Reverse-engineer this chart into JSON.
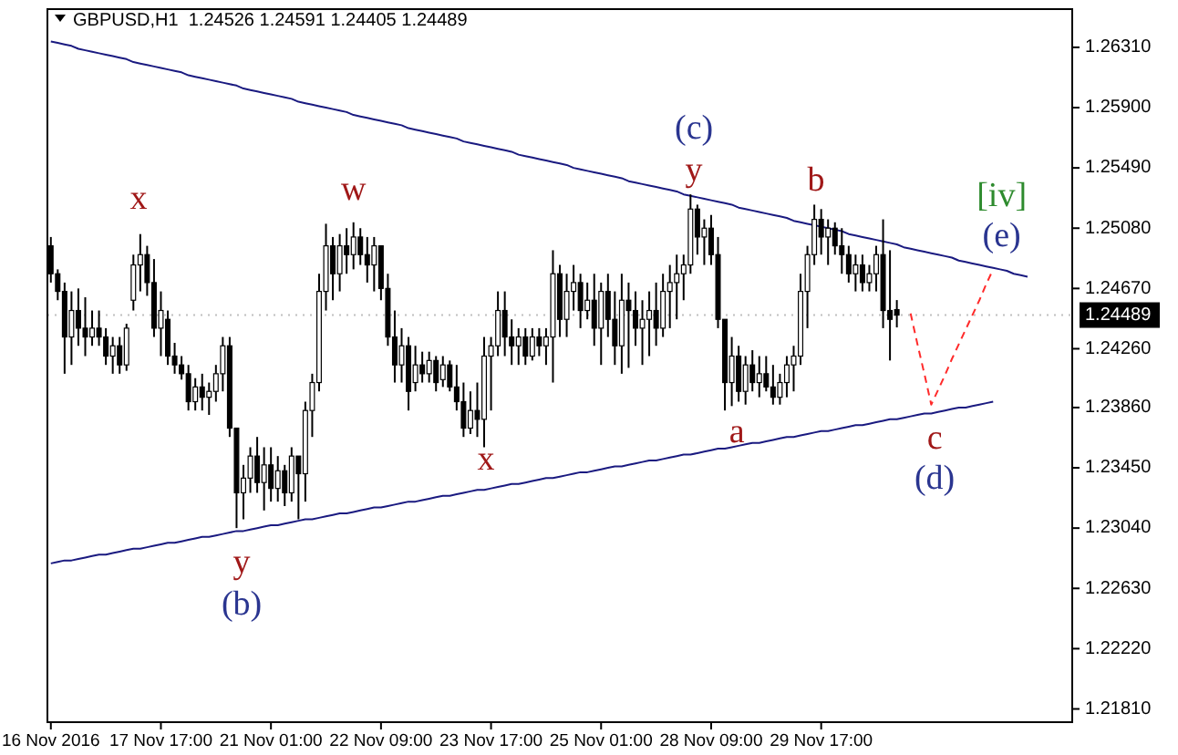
{
  "chart_data": {
    "type": "candlestick",
    "title": "GBPUSD,H1  1.24526 1.24591 1.24405 1.24489",
    "color": "#000000",
    "categories": [
      "16 Nov 2016",
      null,
      null,
      null,
      null,
      null,
      null,
      null,
      null,
      null,
      null,
      null,
      null,
      null,
      null,
      null,
      "17 Nov 17:00",
      null,
      null,
      null,
      null,
      null,
      null,
      null,
      null,
      null,
      null,
      null,
      null,
      null,
      null,
      null,
      "21 Nov 01:00",
      null,
      null,
      null,
      null,
      null,
      null,
      null,
      null,
      null,
      null,
      null,
      null,
      null,
      null,
      null,
      "22 Nov 09:00",
      null,
      null,
      null,
      null,
      null,
      null,
      null,
      null,
      null,
      null,
      null,
      null,
      null,
      null,
      null,
      "23 Nov 17:00",
      null,
      null,
      null,
      null,
      null,
      null,
      null,
      null,
      null,
      null,
      null,
      null,
      null,
      null,
      null,
      "25 Nov 01:00",
      null,
      null,
      null,
      null,
      null,
      null,
      null,
      null,
      null,
      null,
      null,
      null,
      null,
      null,
      null,
      "28 Nov 09:00",
      null,
      null,
      null,
      null,
      null,
      null,
      null,
      null,
      null,
      null,
      null,
      null,
      null,
      null,
      null,
      "29 Nov 17:00",
      null,
      null,
      null,
      null,
      null,
      null,
      null,
      null,
      null,
      null,
      null,
      null,
      null,
      null,
      null,
      null,
      null,
      null,
      null,
      null,
      null,
      null,
      null,
      null,
      null,
      null,
      null,
      null,
      null,
      null,
      null,
      null,
      null,
      null,
      null,
      null
    ],
    "ohlc": [
      [
        1.2496,
        1.2502,
        1.2471,
        1.2477
      ],
      [
        1.2477,
        1.248,
        1.2459,
        1.2465
      ],
      [
        1.2465,
        1.2471,
        1.2409,
        1.2434
      ],
      [
        1.2434,
        1.2465,
        1.2415,
        1.2452
      ],
      [
        1.2452,
        1.2467,
        1.2428,
        1.244
      ],
      [
        1.244,
        1.2461,
        1.2421,
        1.2434
      ],
      [
        1.2434,
        1.2452,
        1.2428,
        1.244
      ],
      [
        1.244,
        1.2452,
        1.2428,
        1.2434
      ],
      [
        1.2434,
        1.244,
        1.2415,
        1.2421
      ],
      [
        1.2421,
        1.2434,
        1.2409,
        1.2428
      ],
      [
        1.2428,
        1.2434,
        1.2409,
        1.2415
      ],
      [
        1.2415,
        1.2443,
        1.2411,
        1.244
      ],
      [
        1.2459,
        1.249,
        1.2452,
        1.2483
      ],
      [
        1.2483,
        1.2504,
        1.2465,
        1.249
      ],
      [
        1.249,
        1.2496,
        1.2462,
        1.2471
      ],
      [
        1.2471,
        1.2487,
        1.2434,
        1.244
      ],
      [
        1.244,
        1.2465,
        1.2421,
        1.2452
      ],
      [
        1.2446,
        1.2452,
        1.2415,
        1.2421
      ],
      [
        1.2421,
        1.243,
        1.2409,
        1.2415
      ],
      [
        1.2415,
        1.2421,
        1.2405,
        1.2409
      ],
      [
        1.2409,
        1.2415,
        1.2384,
        1.239
      ],
      [
        1.239,
        1.2406,
        1.2384,
        1.24
      ],
      [
        1.24,
        1.2409,
        1.2384,
        1.2393
      ],
      [
        1.2393,
        1.2403,
        1.2381,
        1.2397
      ],
      [
        1.2397,
        1.2415,
        1.239,
        1.2409
      ],
      [
        1.2409,
        1.2434,
        1.2397,
        1.2428
      ],
      [
        1.2428,
        1.2434,
        1.2366,
        1.2372
      ],
      [
        1.2372,
        1.2372,
        1.2304,
        1.2328
      ],
      [
        1.2328,
        1.2347,
        1.231,
        1.2338
      ],
      [
        1.2338,
        1.2359,
        1.2328,
        1.2353
      ],
      [
        1.2353,
        1.2366,
        1.2328,
        1.2335
      ],
      [
        1.2335,
        1.2359,
        1.2316,
        1.2347
      ],
      [
        1.2347,
        1.2359,
        1.2322,
        1.2331
      ],
      [
        1.2331,
        1.2353,
        1.2322,
        1.2343
      ],
      [
        1.2343,
        1.2347,
        1.2319,
        1.2328
      ],
      [
        1.2328,
        1.2359,
        1.2322,
        1.2353
      ],
      [
        1.2353,
        1.2353,
        1.231,
        1.2341
      ],
      [
        1.2341,
        1.239,
        1.2322,
        1.2384
      ],
      [
        1.2384,
        1.2409,
        1.2366,
        1.2403
      ],
      [
        1.2403,
        1.2477,
        1.2397,
        1.2465
      ],
      [
        1.2465,
        1.2511,
        1.2452,
        1.2496
      ],
      [
        1.2496,
        1.2502,
        1.2459,
        1.2477
      ],
      [
        1.2477,
        1.2504,
        1.2465,
        1.2496
      ],
      [
        1.2496,
        1.2508,
        1.2477,
        1.249
      ],
      [
        1.249,
        1.2512,
        1.248,
        1.2502
      ],
      [
        1.2502,
        1.2508,
        1.2483,
        1.249
      ],
      [
        1.249,
        1.2502,
        1.2471,
        1.2483
      ],
      [
        1.2483,
        1.2502,
        1.2465,
        1.2496
      ],
      [
        1.2496,
        1.2496,
        1.2459,
        1.2467
      ],
      [
        1.2467,
        1.2477,
        1.2428,
        1.2434
      ],
      [
        1.2434,
        1.2452,
        1.2403,
        1.2415
      ],
      [
        1.2415,
        1.244,
        1.2403,
        1.2428
      ],
      [
        1.2428,
        1.2434,
        1.2384,
        1.2397
      ],
      [
        1.2403,
        1.2428,
        1.2397,
        1.2415
      ],
      [
        1.2415,
        1.2424,
        1.2403,
        1.2409
      ],
      [
        1.2409,
        1.2424,
        1.2403,
        1.2418
      ],
      [
        1.2418,
        1.2421,
        1.2397,
        1.2403
      ],
      [
        1.2405,
        1.2421,
        1.24,
        1.2415
      ],
      [
        1.2415,
        1.2418,
        1.2397,
        1.24
      ],
      [
        1.24,
        1.2415,
        1.2384,
        1.239
      ],
      [
        1.239,
        1.2403,
        1.2366,
        1.2372
      ],
      [
        1.2372,
        1.2397,
        1.2368,
        1.2384
      ],
      [
        1.2384,
        1.2403,
        1.2366,
        1.2378
      ],
      [
        1.2378,
        1.2434,
        1.2359,
        1.2421
      ],
      [
        1.2421,
        1.2434,
        1.2384,
        1.2428
      ],
      [
        1.2428,
        1.2465,
        1.2421,
        1.2452
      ],
      [
        1.2452,
        1.2465,
        1.2421,
        1.2434
      ],
      [
        1.2434,
        1.2446,
        1.2415,
        1.2428
      ],
      [
        1.2428,
        1.244,
        1.2415,
        1.2434
      ],
      [
        1.2434,
        1.244,
        1.2415,
        1.2421
      ],
      [
        1.2421,
        1.244,
        1.2418,
        1.2434
      ],
      [
        1.2434,
        1.244,
        1.2421,
        1.2428
      ],
      [
        1.2428,
        1.244,
        1.2415,
        1.2434
      ],
      [
        1.2434,
        1.2493,
        1.2403,
        1.2477
      ],
      [
        1.2477,
        1.2483,
        1.2434,
        1.2446
      ],
      [
        1.2446,
        1.2477,
        1.2434,
        1.2465
      ],
      [
        1.2465,
        1.2483,
        1.2452,
        1.2471
      ],
      [
        1.2471,
        1.2477,
        1.244,
        1.2452
      ],
      [
        1.2452,
        1.2471,
        1.2446,
        1.2459
      ],
      [
        1.2459,
        1.2477,
        1.2428,
        1.244
      ],
      [
        1.244,
        1.2471,
        1.2415,
        1.2465
      ],
      [
        1.2465,
        1.2477,
        1.2434,
        1.2446
      ],
      [
        1.2446,
        1.2465,
        1.2415,
        1.2428
      ],
      [
        1.2428,
        1.2477,
        1.2409,
        1.2459
      ],
      [
        1.2459,
        1.2471,
        1.2413,
        1.2452
      ],
      [
        1.2452,
        1.2465,
        1.2428,
        1.244
      ],
      [
        1.244,
        1.2459,
        1.2415,
        1.2446
      ],
      [
        1.2446,
        1.2465,
        1.2421,
        1.2452
      ],
      [
        1.2452,
        1.2471,
        1.2428,
        1.244
      ],
      [
        1.244,
        1.2477,
        1.2434,
        1.2465
      ],
      [
        1.2465,
        1.2483,
        1.244,
        1.2471
      ],
      [
        1.2471,
        1.249,
        1.2446,
        1.2477
      ],
      [
        1.2477,
        1.249,
        1.2459,
        1.2483
      ],
      [
        1.2483,
        1.2531,
        1.2477,
        1.2521
      ],
      [
        1.2521,
        1.2524,
        1.249,
        1.2502
      ],
      [
        1.2502,
        1.2514,
        1.2483,
        1.2508
      ],
      [
        1.2508,
        1.2517,
        1.2483,
        1.249
      ],
      [
        1.249,
        1.2502,
        1.244,
        1.2446
      ],
      [
        1.2446,
        1.2446,
        1.2384,
        1.2403
      ],
      [
        1.2403,
        1.2434,
        1.2387,
        1.2421
      ],
      [
        1.2421,
        1.2428,
        1.239,
        1.2397
      ],
      [
        1.2397,
        1.2421,
        1.2388,
        1.2415
      ],
      [
        1.2415,
        1.2425,
        1.2397,
        1.2403
      ],
      [
        1.2403,
        1.2421,
        1.2393,
        1.2409
      ],
      [
        1.2409,
        1.2421,
        1.2397,
        1.24
      ],
      [
        1.24,
        1.2415,
        1.2388,
        1.2393
      ],
      [
        1.2393,
        1.2409,
        1.2388,
        1.2403
      ],
      [
        1.2403,
        1.2421,
        1.2393,
        1.2415
      ],
      [
        1.2415,
        1.2428,
        1.2397,
        1.2421
      ],
      [
        1.2421,
        1.2477,
        1.2415,
        1.2465
      ],
      [
        1.2465,
        1.2496,
        1.244,
        1.249
      ],
      [
        1.249,
        1.2524,
        1.2483,
        1.2514
      ],
      [
        1.2514,
        1.2521,
        1.249,
        1.2502
      ],
      [
        1.2502,
        1.2514,
        1.2483,
        1.2508
      ],
      [
        1.2508,
        1.2512,
        1.249,
        1.2496
      ],
      [
        1.2496,
        1.2508,
        1.2477,
        1.249
      ],
      [
        1.249,
        1.2496,
        1.2471,
        1.2477
      ],
      [
        1.2477,
        1.249,
        1.2465,
        1.2483
      ],
      [
        1.2483,
        1.249,
        1.2465,
        1.2471
      ],
      [
        1.2471,
        1.2483,
        1.2465,
        1.2477
      ],
      [
        1.2477,
        1.2496,
        1.2465,
        1.249
      ],
      [
        1.249,
        1.2514,
        1.244,
        1.2452
      ],
      [
        1.2452,
        1.2493,
        1.2418,
        1.2446
      ],
      [
        1.24526,
        1.24591,
        1.24405,
        1.24489
      ],
      null,
      null,
      null,
      null,
      null,
      null,
      null,
      null,
      null,
      null,
      null,
      null,
      null,
      null,
      null,
      null,
      null,
      null,
      null,
      null,
      null,
      null,
      null,
      null,
      null
    ],
    "series": [
      {
        "type": "line",
        "color": "#1a1a80",
        "line_style": "solid",
        "values": [
          1.2635,
          1.2634,
          1.2633,
          1.2632,
          1.263,
          1.2629,
          1.2628,
          1.2627,
          1.2626,
          1.2625,
          1.2624,
          1.2623,
          1.2621,
          1.262,
          1.2619,
          1.2618,
          1.2617,
          1.2616,
          1.2615,
          1.2614,
          1.2612,
          1.2611,
          1.261,
          1.2609,
          1.2608,
          1.2607,
          1.2606,
          1.2605,
          1.2603,
          1.2602,
          1.2601,
          1.26,
          1.2599,
          1.2598,
          1.2597,
          1.2596,
          1.2594,
          1.2593,
          1.2592,
          1.2591,
          1.259,
          1.2589,
          1.2588,
          1.2587,
          1.2585,
          1.2584,
          1.2583,
          1.2582,
          1.2581,
          1.258,
          1.2579,
          1.2578,
          1.2576,
          1.2575,
          1.2574,
          1.2573,
          1.2572,
          1.2571,
          1.257,
          1.2569,
          1.2567,
          1.2566,
          1.2565,
          1.2564,
          1.2563,
          1.2562,
          1.2561,
          1.256,
          1.2558,
          1.2557,
          1.2556,
          1.2555,
          1.2554,
          1.2553,
          1.2552,
          1.2551,
          1.2549,
          1.2548,
          1.2547,
          1.2546,
          1.2545,
          1.2544,
          1.2543,
          1.2542,
          1.254,
          1.2539,
          1.2538,
          1.2537,
          1.2536,
          1.2535,
          1.2534,
          1.2533,
          1.2531,
          1.253,
          1.2529,
          1.2528,
          1.2527,
          1.2526,
          1.2525,
          1.2524,
          1.2522,
          1.2521,
          1.252,
          1.2519,
          1.2518,
          1.2517,
          1.2516,
          1.2515,
          1.2513,
          1.2512,
          1.2511,
          1.251,
          1.2509,
          1.2508,
          1.2507,
          1.2506,
          1.2504,
          1.2503,
          1.2502,
          1.2501,
          1.25,
          1.2499,
          1.2498,
          1.2497,
          1.2495,
          1.2494,
          1.2493,
          1.2492,
          1.2491,
          1.249,
          1.2489,
          1.2488,
          1.2486,
          1.2485,
          1.2484,
          1.2483,
          1.2482,
          1.2481,
          1.248,
          1.2479,
          1.2477,
          1.2476,
          1.2475,
          null,
          null,
          null,
          null,
          null,
          null
        ]
      },
      {
        "type": "line",
        "color": "#1a1a80",
        "line_style": "solid",
        "values": [
          1.228,
          1.2281,
          1.2282,
          1.2282,
          1.2283,
          1.2284,
          1.2285,
          1.2286,
          1.2286,
          1.2287,
          1.2288,
          1.2289,
          1.229,
          1.229,
          1.2291,
          1.2292,
          1.2293,
          1.2294,
          1.2294,
          1.2295,
          1.2296,
          1.2297,
          1.2298,
          1.2298,
          1.2299,
          1.23,
          1.2301,
          1.2302,
          1.2302,
          1.2303,
          1.2304,
          1.2305,
          1.2306,
          1.2306,
          1.2307,
          1.2308,
          1.2309,
          1.231,
          1.231,
          1.2311,
          1.2312,
          1.2313,
          1.2314,
          1.2314,
          1.2315,
          1.2316,
          1.2317,
          1.2318,
          1.2318,
          1.2319,
          1.232,
          1.2321,
          1.2322,
          1.2322,
          1.2323,
          1.2324,
          1.2325,
          1.2326,
          1.2326,
          1.2327,
          1.2328,
          1.2329,
          1.233,
          1.233,
          1.2331,
          1.2332,
          1.2333,
          1.2334,
          1.2334,
          1.2335,
          1.2336,
          1.2337,
          1.2338,
          1.2338,
          1.2339,
          1.234,
          1.2341,
          1.2342,
          1.2342,
          1.2343,
          1.2344,
          1.2345,
          1.2346,
          1.2346,
          1.2347,
          1.2348,
          1.2349,
          1.235,
          1.235,
          1.2351,
          1.2352,
          1.2353,
          1.2354,
          1.2354,
          1.2355,
          1.2356,
          1.2357,
          1.2358,
          1.2358,
          1.2359,
          1.236,
          1.2361,
          1.2362,
          1.2362,
          1.2363,
          1.2364,
          1.2365,
          1.2366,
          1.2366,
          1.2367,
          1.2368,
          1.2369,
          1.237,
          1.237,
          1.2371,
          1.2372,
          1.2373,
          1.2374,
          1.2374,
          1.2375,
          1.2376,
          1.2377,
          1.2378,
          1.2378,
          1.2379,
          1.238,
          1.2381,
          1.2382,
          1.2382,
          1.2383,
          1.2384,
          1.2385,
          1.2386,
          1.2386,
          1.2387,
          1.2388,
          1.2389,
          1.239,
          null,
          null,
          null,
          null,
          null,
          null,
          null,
          null,
          null,
          null,
          null
        ]
      },
      {
        "type": "line",
        "color": "#ff2a2a",
        "line_style": "dashed",
        "values": [
          null,
          null,
          null,
          null,
          null,
          null,
          null,
          null,
          null,
          null,
          null,
          null,
          null,
          null,
          null,
          null,
          null,
          null,
          null,
          null,
          null,
          null,
          null,
          null,
          null,
          null,
          null,
          null,
          null,
          null,
          null,
          null,
          null,
          null,
          null,
          null,
          null,
          null,
          null,
          null,
          null,
          null,
          null,
          null,
          null,
          null,
          null,
          null,
          null,
          null,
          null,
          null,
          null,
          null,
          null,
          null,
          null,
          null,
          null,
          null,
          null,
          null,
          null,
          null,
          null,
          null,
          null,
          null,
          null,
          null,
          null,
          null,
          null,
          null,
          null,
          null,
          null,
          null,
          null,
          null,
          null,
          null,
          null,
          null,
          null,
          null,
          null,
          null,
          null,
          null,
          null,
          null,
          null,
          null,
          null,
          null,
          null,
          null,
          null,
          null,
          null,
          null,
          null,
          null,
          null,
          null,
          null,
          null,
          null,
          null,
          null,
          null,
          null,
          null,
          null,
          null,
          null,
          null,
          null,
          null,
          null,
          null,
          null,
          null,
          null,
          1.245,
          1.2429,
          1.2409,
          1.2388,
          1.2398,
          1.2408,
          1.2419,
          1.2429,
          1.2439,
          1.2449,
          1.2459,
          1.247,
          1.248,
          null,
          null,
          null,
          null,
          null,
          null,
          null,
          null,
          null,
          null,
          null
        ]
      }
    ],
    "ylim": [
      1.2172,
      1.2657
    ],
    "yticks": [
      {
        "value": 1.2631,
        "label": "1.26310"
      },
      {
        "value": 1.259,
        "label": "1.25900"
      },
      {
        "value": 1.2549,
        "label": "1.25490"
      },
      {
        "value": 1.2508,
        "label": "1.25080"
      },
      {
        "value": 1.2467,
        "label": "1.24670"
      },
      {
        "value": 1.2426,
        "label": "1.24260"
      },
      {
        "value": 1.2386,
        "label": "1.23860"
      },
      {
        "value": 1.2345,
        "label": "1.23450"
      },
      {
        "value": 1.2304,
        "label": "1.23040"
      },
      {
        "value": 1.2263,
        "label": "1.22630"
      },
      {
        "value": 1.2222,
        "label": "1.22220"
      },
      {
        "value": 1.2181,
        "label": "1.21810"
      }
    ],
    "ref_lines": [
      {
        "axis": "y",
        "value": 1.24489,
        "label": "1.24489",
        "color": "#000000"
      }
    ],
    "grid": false,
    "annotations": [
      {
        "text": "x",
        "y": 1.2504
      },
      {
        "text": "w",
        "y": 1.2512
      },
      {
        "text": "x",
        "y": 1.2359
      },
      {
        "text": "y",
        "y": 1.2304
      },
      {
        "text": "(b)",
        "y": 1.2304
      },
      {
        "text": "(c)",
        "y": 1.2531
      },
      {
        "text": "y",
        "y": 1.2531
      },
      {
        "text": "a",
        "y": 1.2384
      },
      {
        "text": "b",
        "y": 1.2524
      },
      {
        "text": "c",
        "y": 1.2388
      },
      {
        "text": "(d)",
        "y": 1.2388
      },
      {
        "text": "[iv]",
        "y": 1.248
      },
      {
        "text": "(e)",
        "y": 1.248
      }
    ]
  }
}
